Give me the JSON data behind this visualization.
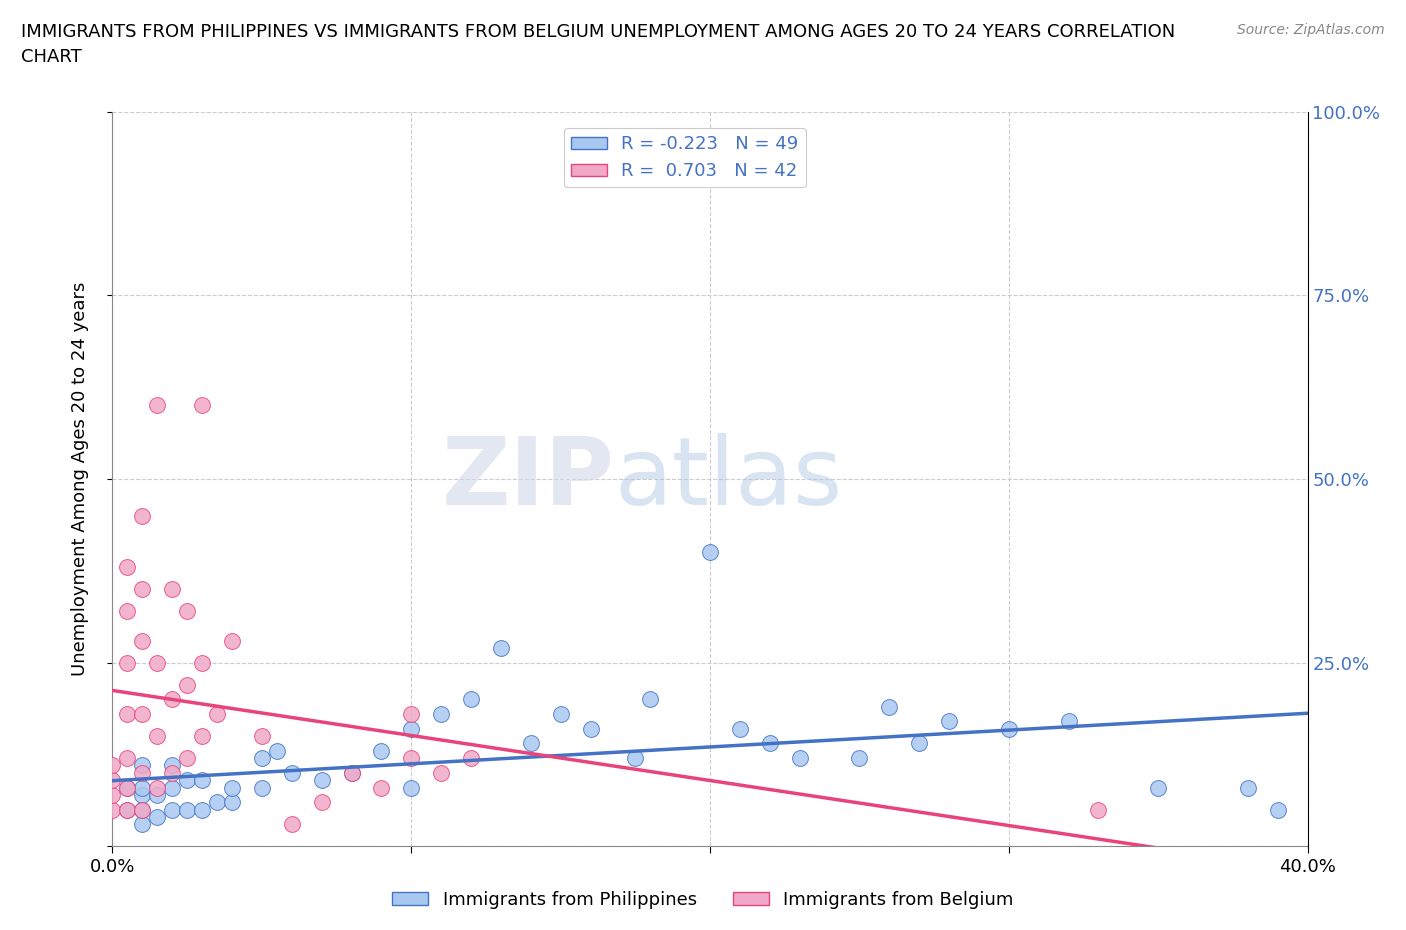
{
  "title": "IMMIGRANTS FROM PHILIPPINES VS IMMIGRANTS FROM BELGIUM UNEMPLOYMENT AMONG AGES 20 TO 24 YEARS CORRELATION\nCHART",
  "source_text": "Source: ZipAtlas.com",
  "ylabel": "Unemployment Among Ages 20 to 24 years",
  "xlim": [
    0.0,
    0.4
  ],
  "ylim": [
    0.0,
    1.0
  ],
  "xticks": [
    0.0,
    0.1,
    0.2,
    0.3,
    0.4
  ],
  "yticks": [
    0.0,
    0.25,
    0.5,
    0.75,
    1.0
  ],
  "right_ytick_labels": [
    "",
    "25.0%",
    "50.0%",
    "75.0%",
    "100.0%"
  ],
  "xtick_labels": [
    "0.0%",
    "",
    "",
    "",
    "40.0%"
  ],
  "color_philippines": "#a8c8f0",
  "color_belgium": "#f0a8c8",
  "color_line_philippines": "#4472c4",
  "color_line_belgium": "#e8447a",
  "R_philippines": -0.223,
  "N_philippines": 49,
  "R_belgium": 0.703,
  "N_belgium": 42,
  "watermark_zip": "ZIP",
  "watermark_atlas": "atlas",
  "background_color": "#ffffff",
  "grid_color": "#cccccc",
  "philippines_x": [
    0.005,
    0.005,
    0.01,
    0.01,
    0.01,
    0.01,
    0.01,
    0.015,
    0.015,
    0.02,
    0.02,
    0.02,
    0.025,
    0.025,
    0.03,
    0.03,
    0.035,
    0.04,
    0.04,
    0.05,
    0.05,
    0.055,
    0.06,
    0.07,
    0.08,
    0.09,
    0.1,
    0.1,
    0.11,
    0.12,
    0.13,
    0.14,
    0.15,
    0.16,
    0.175,
    0.18,
    0.2,
    0.21,
    0.22,
    0.23,
    0.25,
    0.26,
    0.27,
    0.28,
    0.3,
    0.32,
    0.35,
    0.38,
    0.39
  ],
  "philippines_y": [
    0.05,
    0.08,
    0.03,
    0.05,
    0.07,
    0.08,
    0.11,
    0.04,
    0.07,
    0.05,
    0.08,
    0.11,
    0.05,
    0.09,
    0.05,
    0.09,
    0.06,
    0.06,
    0.08,
    0.08,
    0.12,
    0.13,
    0.1,
    0.09,
    0.1,
    0.13,
    0.08,
    0.16,
    0.18,
    0.2,
    0.27,
    0.14,
    0.18,
    0.16,
    0.12,
    0.2,
    0.4,
    0.16,
    0.14,
    0.12,
    0.12,
    0.19,
    0.14,
    0.17,
    0.16,
    0.17,
    0.08,
    0.08,
    0.05
  ],
  "belgium_x": [
    0.0,
    0.0,
    0.0,
    0.0,
    0.005,
    0.005,
    0.005,
    0.005,
    0.005,
    0.005,
    0.005,
    0.01,
    0.01,
    0.01,
    0.01,
    0.01,
    0.01,
    0.015,
    0.015,
    0.015,
    0.015,
    0.02,
    0.02,
    0.02,
    0.025,
    0.025,
    0.025,
    0.03,
    0.03,
    0.03,
    0.035,
    0.04,
    0.05,
    0.06,
    0.07,
    0.08,
    0.09,
    0.1,
    0.1,
    0.11,
    0.12,
    0.33
  ],
  "belgium_y": [
    0.05,
    0.07,
    0.09,
    0.11,
    0.05,
    0.08,
    0.12,
    0.18,
    0.25,
    0.32,
    0.38,
    0.05,
    0.1,
    0.18,
    0.28,
    0.35,
    0.45,
    0.08,
    0.15,
    0.25,
    0.6,
    0.1,
    0.2,
    0.35,
    0.12,
    0.22,
    0.32,
    0.15,
    0.25,
    0.6,
    0.18,
    0.28,
    0.15,
    0.03,
    0.06,
    0.1,
    0.08,
    0.12,
    0.18,
    0.1,
    0.12,
    0.05
  ]
}
